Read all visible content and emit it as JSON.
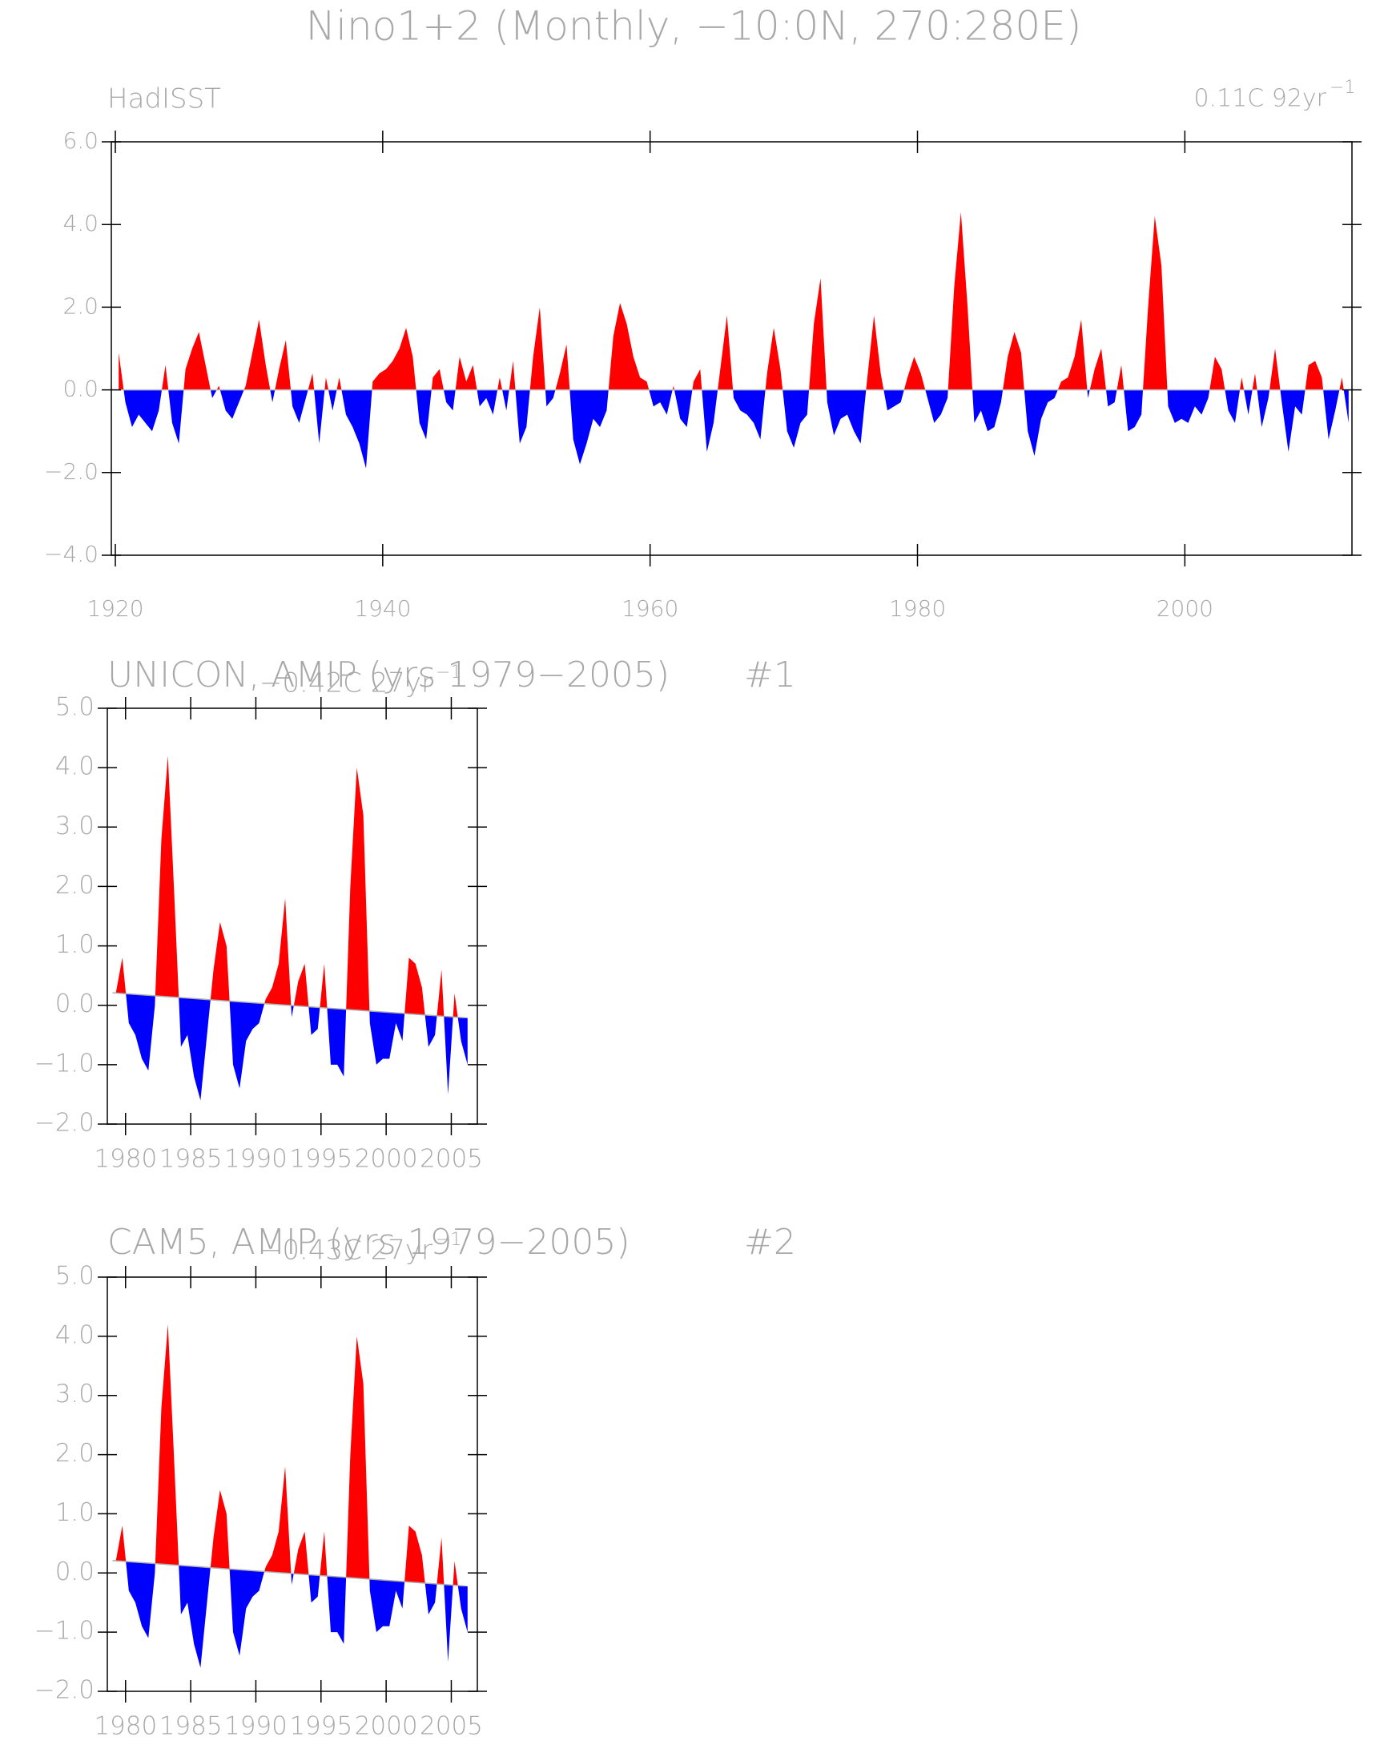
{
  "title": "Nino1+2 (Monthly, −10:0N, 270:280E)",
  "chart_data": [
    {
      "type": "area",
      "subtitle": "HadISST",
      "trend_label": "0.11C 92yr",
      "trend_exp": "−1",
      "pos_color": "#ff0000",
      "neg_color": "#0000ff",
      "xlim": [
        1919.7,
        2012.5
      ],
      "ylim": [
        -4,
        6
      ],
      "xticks": [
        1920,
        1940,
        1960,
        1980,
        2000
      ],
      "yticks": [
        {
          "value": -4,
          "label": "−4.0"
        },
        {
          "value": -2,
          "label": "−2.0"
        },
        {
          "value": 0,
          "label": "0.0"
        },
        {
          "value": 2,
          "label": "2.0"
        },
        {
          "value": 4,
          "label": "4.0"
        },
        {
          "value": 6,
          "label": "6.0"
        }
      ],
      "x": [
        1920.25,
        1920.75,
        1921.25,
        1921.75,
        1922.25,
        1922.75,
        1923.25,
        1923.75,
        1924.25,
        1924.75,
        1925.25,
        1925.75,
        1926.25,
        1926.75,
        1927.25,
        1927.75,
        1928.25,
        1928.75,
        1929.25,
        1929.75,
        1930.25,
        1930.75,
        1931.25,
        1931.75,
        1932.25,
        1932.75,
        1933.25,
        1933.75,
        1934.25,
        1934.75,
        1935.25,
        1935.75,
        1936.25,
        1936.75,
        1937.25,
        1937.75,
        1938.25,
        1938.75,
        1939.25,
        1939.75,
        1940.25,
        1940.75,
        1941.25,
        1941.75,
        1942.25,
        1942.75,
        1943.25,
        1943.75,
        1944.25,
        1944.75,
        1945.25,
        1945.75,
        1946.25,
        1946.75,
        1947.25,
        1947.75,
        1948.25,
        1948.75,
        1949.25,
        1949.75,
        1950.25,
        1950.75,
        1951.25,
        1951.75,
        1952.25,
        1952.75,
        1953.25,
        1953.75,
        1954.25,
        1954.75,
        1955.25,
        1955.75,
        1956.25,
        1956.75,
        1957.25,
        1957.75,
        1958.25,
        1958.75,
        1959.25,
        1959.75,
        1960.25,
        1960.75,
        1961.25,
        1961.75,
        1962.25,
        1962.75,
        1963.25,
        1963.75,
        1964.25,
        1964.75,
        1965.25,
        1965.75,
        1966.25,
        1966.75,
        1967.25,
        1967.75,
        1968.25,
        1968.75,
        1969.25,
        1969.75,
        1970.25,
        1970.75,
        1971.25,
        1971.75,
        1972.25,
        1972.75,
        1973.25,
        1973.75,
        1974.25,
        1974.75,
        1975.25,
        1975.75,
        1976.25,
        1976.75,
        1977.25,
        1977.75,
        1978.25,
        1978.75,
        1979.25,
        1979.75,
        1980.25,
        1980.75,
        1981.25,
        1981.75,
        1982.25,
        1982.75,
        1983.25,
        1983.75,
        1984.25,
        1984.75,
        1985.25,
        1985.75,
        1986.25,
        1986.75,
        1987.25,
        1987.75,
        1988.25,
        1988.75,
        1989.25,
        1989.75,
        1990.25,
        1990.75,
        1991.25,
        1991.75,
        1992.25,
        1992.75,
        1993.25,
        1993.75,
        1994.25,
        1994.75,
        1995.25,
        1995.75,
        1996.25,
        1996.75,
        1997.25,
        1997.75,
        1998.25,
        1998.75,
        1999.25,
        1999.75,
        2000.25,
        2000.75,
        2001.25,
        2001.75,
        2002.25,
        2002.75,
        2003.25,
        2003.75,
        2004.25,
        2004.75,
        2005.25,
        2005.75,
        2006.25,
        2006.75,
        2007.25,
        2007.75,
        2008.25,
        2008.75,
        2009.25,
        2009.75,
        2010.25,
        2010.75,
        2011.25,
        2011.75,
        2012.25
      ],
      "values": [
        0.9,
        -0.3,
        -0.9,
        -0.6,
        -0.8,
        -1.0,
        -0.5,
        0.6,
        -0.8,
        -1.3,
        0.5,
        1.0,
        1.4,
        0.6,
        -0.2,
        0.1,
        -0.5,
        -0.7,
        -0.3,
        0.1,
        0.9,
        1.7,
        0.6,
        -0.3,
        0.5,
        1.2,
        -0.4,
        -0.8,
        -0.2,
        0.4,
        -1.3,
        0.3,
        -0.5,
        0.3,
        -0.6,
        -0.9,
        -1.3,
        -1.9,
        0.2,
        0.4,
        0.5,
        0.7,
        1.0,
        1.5,
        0.8,
        -0.8,
        -1.2,
        0.3,
        0.5,
        -0.3,
        -0.5,
        0.8,
        0.2,
        0.6,
        -0.4,
        -0.2,
        -0.6,
        0.3,
        -0.5,
        0.7,
        -1.3,
        -0.9,
        0.8,
        2.0,
        -0.4,
        -0.2,
        0.4,
        1.1,
        -1.2,
        -1.8,
        -1.3,
        -0.7,
        -0.9,
        -0.5,
        1.3,
        2.1,
        1.6,
        0.8,
        0.3,
        0.2,
        -0.4,
        -0.3,
        -0.6,
        0.1,
        -0.7,
        -0.9,
        0.2,
        0.5,
        -1.5,
        -0.8,
        0.5,
        1.8,
        -0.2,
        -0.5,
        -0.6,
        -0.8,
        -1.2,
        0.4,
        1.5,
        0.5,
        -1.0,
        -1.4,
        -0.8,
        -0.6,
        1.6,
        2.7,
        -0.3,
        -1.1,
        -0.7,
        -0.6,
        -1.0,
        -1.3,
        0.3,
        1.8,
        0.4,
        -0.5,
        -0.4,
        -0.3,
        0.3,
        0.8,
        0.4,
        -0.2,
        -0.8,
        -0.6,
        -0.2,
        2.5,
        4.3,
        2.0,
        -0.8,
        -0.5,
        -1.0,
        -0.9,
        -0.3,
        0.8,
        1.4,
        0.9,
        -1.0,
        -1.6,
        -0.7,
        -0.3,
        -0.2,
        0.2,
        0.3,
        0.8,
        1.7,
        -0.2,
        0.5,
        1.0,
        -0.4,
        -0.3,
        0.6,
        -1.0,
        -0.9,
        -0.6,
        2.0,
        4.2,
        3.0,
        -0.4,
        -0.8,
        -0.7,
        -0.8,
        -0.4,
        -0.6,
        -0.2,
        0.8,
        0.5,
        -0.5,
        -0.8,
        0.3,
        -0.6,
        0.4,
        -0.9,
        -0.2,
        1.0,
        -0.3,
        -1.5,
        -0.4,
        -0.6,
        0.6,
        0.7,
        0.3,
        -1.2,
        -0.5,
        0.3,
        -0.8
      ]
    },
    {
      "type": "area",
      "subtitle": "UNICON, AMIP (yrs 1979−2005)",
      "run": "#1",
      "trend_label": "−0.42C 27yr",
      "trend_exp": "−1",
      "pos_color": "#ff0000",
      "neg_color": "#0000ff",
      "xlim": [
        1978.6,
        2007.0
      ],
      "ylim": [
        -2,
        5
      ],
      "xticks": [
        1980,
        1985,
        1990,
        1995,
        2000,
        2005
      ],
      "yticks": [
        {
          "value": -2,
          "label": "−2.0"
        },
        {
          "value": -1,
          "label": "−1.0"
        },
        {
          "value": 0,
          "label": "0.0"
        },
        {
          "value": 1,
          "label": "1.0"
        },
        {
          "value": 2,
          "label": "2.0"
        },
        {
          "value": 3,
          "label": "3.0"
        },
        {
          "value": 4,
          "label": "4.0"
        },
        {
          "value": 5,
          "label": "5.0"
        }
      ],
      "trend": {
        "x": [
          1979,
          2006
        ],
        "values": [
          0.21,
          -0.21
        ]
      },
      "x": [
        1979.25,
        1979.75,
        1980.25,
        1980.75,
        1981.25,
        1981.75,
        1982.25,
        1982.75,
        1983.25,
        1983.75,
        1984.25,
        1984.75,
        1985.25,
        1985.75,
        1986.25,
        1986.75,
        1987.25,
        1987.75,
        1988.25,
        1988.75,
        1989.25,
        1989.75,
        1990.25,
        1990.75,
        1991.25,
        1991.75,
        1992.25,
        1992.75,
        1993.25,
        1993.75,
        1994.25,
        1994.75,
        1995.25,
        1995.75,
        1996.25,
        1996.75,
        1997.25,
        1997.75,
        1998.25,
        1998.75,
        1999.25,
        1999.75,
        2000.25,
        2000.75,
        2001.25,
        2001.75,
        2002.25,
        2002.75,
        2003.25,
        2003.75,
        2004.25,
        2004.75,
        2005.25,
        2005.75,
        2006.25
      ],
      "values": [
        0.2,
        0.8,
        -0.3,
        -0.5,
        -0.9,
        -1.1,
        0.0,
        2.8,
        4.2,
        1.8,
        -0.7,
        -0.5,
        -1.2,
        -1.6,
        -0.5,
        0.6,
        1.4,
        1.0,
        -1.0,
        -1.4,
        -0.6,
        -0.4,
        -0.3,
        0.1,
        0.3,
        0.7,
        1.8,
        -0.2,
        0.4,
        0.7,
        -0.5,
        -0.4,
        0.7,
        -1.0,
        -1.0,
        -1.2,
        2.0,
        4.0,
        3.2,
        -0.3,
        -1.0,
        -0.9,
        -0.9,
        -0.3,
        -0.6,
        0.8,
        0.7,
        0.3,
        -0.7,
        -0.5,
        0.6,
        -1.5,
        0.2,
        -0.6,
        -1.0
      ]
    },
    {
      "type": "area",
      "subtitle": "CAM5, AMIP (yrs 1979−2005)",
      "run": "#2",
      "trend_label": "−0.43C 27yr",
      "trend_exp": "−1",
      "pos_color": "#ff0000",
      "neg_color": "#0000ff",
      "xlim": [
        1978.6,
        2007.0
      ],
      "ylim": [
        -2,
        5
      ],
      "xticks": [
        1980,
        1985,
        1990,
        1995,
        2000,
        2005
      ],
      "yticks": [
        {
          "value": -2,
          "label": "−2.0"
        },
        {
          "value": -1,
          "label": "−1.0"
        },
        {
          "value": 0,
          "label": "0.0"
        },
        {
          "value": 1,
          "label": "1.0"
        },
        {
          "value": 2,
          "label": "2.0"
        },
        {
          "value": 3,
          "label": "3.0"
        },
        {
          "value": 4,
          "label": "4.0"
        },
        {
          "value": 5,
          "label": "5.0"
        }
      ],
      "trend": {
        "x": [
          1979,
          2006
        ],
        "values": [
          0.21,
          -0.22
        ]
      },
      "x": [
        1979.25,
        1979.75,
        1980.25,
        1980.75,
        1981.25,
        1981.75,
        1982.25,
        1982.75,
        1983.25,
        1983.75,
        1984.25,
        1984.75,
        1985.25,
        1985.75,
        1986.25,
        1986.75,
        1987.25,
        1987.75,
        1988.25,
        1988.75,
        1989.25,
        1989.75,
        1990.25,
        1990.75,
        1991.25,
        1991.75,
        1992.25,
        1992.75,
        1993.25,
        1993.75,
        1994.25,
        1994.75,
        1995.25,
        1995.75,
        1996.25,
        1996.75,
        1997.25,
        1997.75,
        1998.25,
        1998.75,
        1999.25,
        1999.75,
        2000.25,
        2000.75,
        2001.25,
        2001.75,
        2002.25,
        2002.75,
        2003.25,
        2003.75,
        2004.25,
        2004.75,
        2005.25,
        2005.75,
        2006.25
      ],
      "values": [
        0.2,
        0.8,
        -0.3,
        -0.5,
        -0.9,
        -1.1,
        0.0,
        2.8,
        4.2,
        1.8,
        -0.7,
        -0.5,
        -1.2,
        -1.6,
        -0.5,
        0.6,
        1.4,
        1.0,
        -1.0,
        -1.4,
        -0.6,
        -0.4,
        -0.3,
        0.1,
        0.3,
        0.7,
        1.8,
        -0.2,
        0.4,
        0.7,
        -0.5,
        -0.4,
        0.7,
        -1.0,
        -1.0,
        -1.2,
        2.0,
        4.0,
        3.2,
        -0.3,
        -1.0,
        -0.9,
        -0.9,
        -0.3,
        -0.6,
        0.8,
        0.7,
        0.3,
        -0.7,
        -0.5,
        0.6,
        -1.5,
        0.2,
        -0.6,
        -1.0
      ]
    }
  ]
}
